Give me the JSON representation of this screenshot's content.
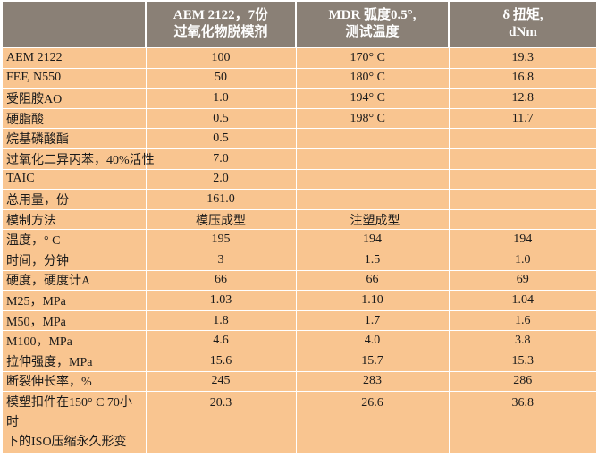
{
  "header": {
    "col0": "",
    "col1_line1": "AEM 2122，7份",
    "col1_line2": "过氧化物脱模剂",
    "col2_line1": "MDR 弧度0.5°,",
    "col2_line2": "测试温度",
    "col3_line1": "δ 扭矩,",
    "col3_line2": "dNm"
  },
  "rows": [
    {
      "label": "AEM 2122",
      "v1": "100",
      "v2": "170° C",
      "v3": "19.3"
    },
    {
      "label": "FEF, N550",
      "v1": "50",
      "v2": "180° C",
      "v3": "16.8"
    },
    {
      "label": "受阻胺AO",
      "v1": "1.0",
      "v2": "194° C",
      "v3": "12.8"
    },
    {
      "label": "硬脂酸",
      "v1": "0.5",
      "v2": "198° C",
      "v3": "11.7"
    },
    {
      "label": "烷基磷酸酯",
      "v1": "0.5",
      "v2": "",
      "v3": ""
    },
    {
      "label": "过氧化二异丙苯，40%活性",
      "v1": "7.0",
      "v2": "",
      "v3": ""
    },
    {
      "label": "TAIC",
      "v1": "2.0",
      "v2": "",
      "v3": ""
    },
    {
      "label": "总用量，份",
      "v1": "161.0",
      "v2": "",
      "v3": ""
    },
    {
      "label": "模制方法",
      "v1": "模压成型",
      "v2": "注塑成型",
      "v3": ""
    },
    {
      "label": "温度，° C",
      "v1": "195",
      "v2": "194",
      "v3": "194"
    },
    {
      "label": "时间，分钟",
      "v1": "3",
      "v2": "1.5",
      "v3": "1.0"
    },
    {
      "label": "硬度，硬度计A",
      "v1": "66",
      "v2": "66",
      "v3": "69"
    },
    {
      "label": "M25，MPa",
      "v1": "1.03",
      "v2": "1.10",
      "v3": "1.04"
    },
    {
      "label": "M50，MPa",
      "v1": "1.8",
      "v2": "1.7",
      "v3": "1.6"
    },
    {
      "label": "M100，MPa",
      "v1": "4.6",
      "v2": "4.0",
      "v3": "3.8"
    },
    {
      "label": "拉伸强度，MPa",
      "v1": "15.6",
      "v2": "15.7",
      "v3": "15.3"
    },
    {
      "label": "断裂伸长率，%",
      "v1": "245",
      "v2": "283",
      "v3": "286"
    }
  ],
  "last_row": {
    "label_line1": "模塑扣件在150° C 70小时",
    "label_line2": "下的ISO压缩永久形变",
    "v1": "20.3",
    "v2": "26.6",
    "v3": "36.8"
  }
}
